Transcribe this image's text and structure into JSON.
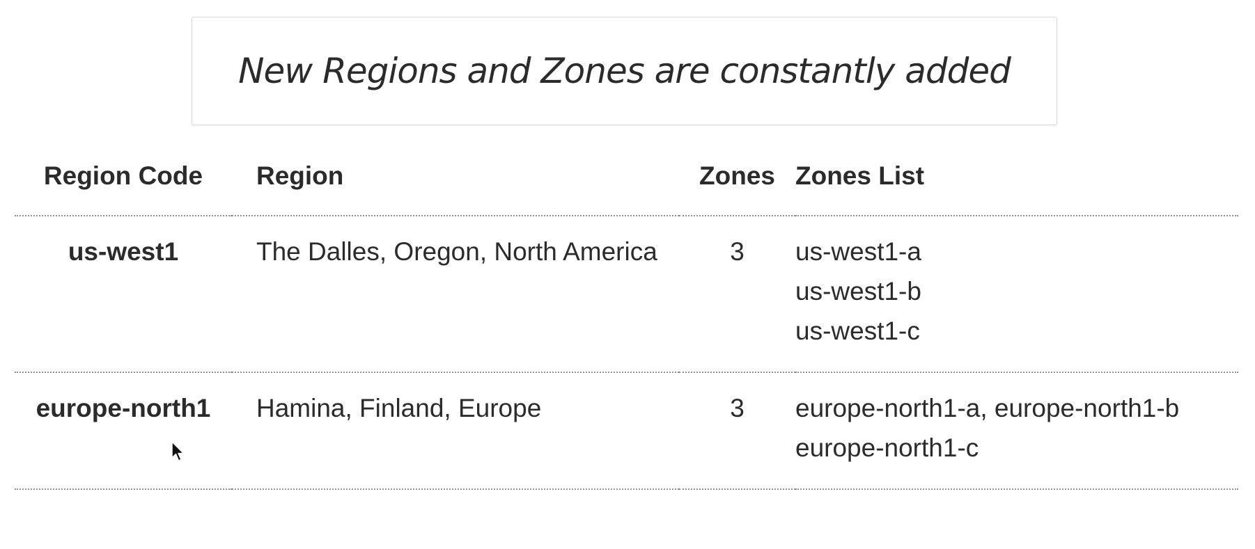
{
  "notice": {
    "text": "New Regions and Zones are constantly added"
  },
  "table": {
    "headers": {
      "region_code": "Region Code",
      "region": "Region",
      "zones": "Zones",
      "zones_list": "Zones List"
    },
    "rows": [
      {
        "region_code": "us-west1",
        "region": "The Dalles, Oregon, North America",
        "zones": "3",
        "zones_list": [
          "us-west1-a",
          "us-west1-b",
          "us-west1-c"
        ]
      },
      {
        "region_code": "europe-north1",
        "region": "Hamina, Finland, Europe",
        "zones": "3",
        "zones_list": [
          "europe-north1-a, europe-north1-b",
          "europe-north1-c"
        ]
      }
    ]
  },
  "icons": {
    "cursor": "mouse-pointer-icon"
  }
}
